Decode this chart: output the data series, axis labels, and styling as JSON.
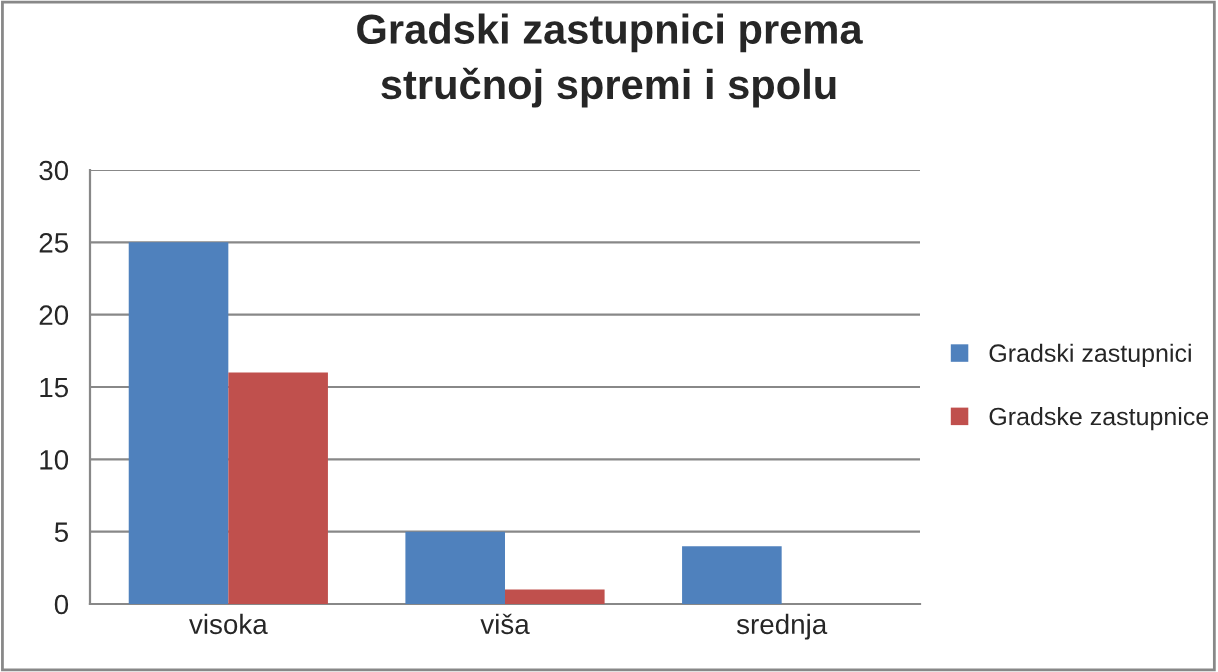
{
  "chart_data": {
    "type": "bar",
    "title": "Gradski zastupnici prema\nstručnoj spremi i spolu",
    "categories": [
      "visoka",
      "viša",
      "srednja"
    ],
    "series": [
      {
        "name": "Gradski zastupnici",
        "color": "#4f81bd",
        "values": [
          25,
          5,
          4
        ]
      },
      {
        "name": "Gradske zastupnice",
        "color": "#c0504d",
        "values": [
          16,
          1,
          null
        ]
      }
    ],
    "ylim": [
      0,
      30
    ],
    "yticks": [
      0,
      5,
      10,
      15,
      20,
      25,
      30
    ],
    "grid": "y",
    "legend": "right"
  }
}
